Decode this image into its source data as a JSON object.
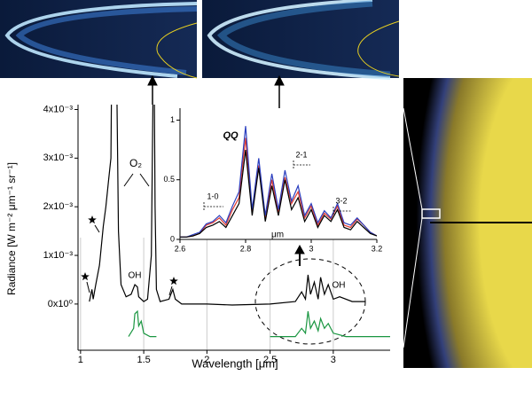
{
  "chart_data": [
    {
      "type": "line",
      "xlabel": "Wavelength [μm]",
      "ylabel": "Radiance [W m⁻² μm⁻¹ sr⁻¹]",
      "annotations": [
        "O₂",
        "OH",
        "OH"
      ],
      "xlim": [
        0.98,
        3.45
      ],
      "xticks": [
        1,
        1.5,
        2,
        2.5,
        3
      ],
      "ylim": [
        -0.00095,
        0.0041
      ],
      "yticks": [
        {
          "value": 0,
          "label": "0x10⁰"
        },
        {
          "value": 0.001,
          "label": "1x10⁻³"
        },
        {
          "value": 0.002,
          "label": "2x10⁻³"
        },
        {
          "value": 0.003,
          "label": "3x10⁻³"
        },
        {
          "value": 0.004,
          "label": "4x10⁻³"
        }
      ],
      "grid": true,
      "series": [
        {
          "color": "#000000",
          "x": [
            1.07,
            1.09,
            1.1,
            1.12,
            1.15,
            1.18,
            1.2,
            1.22,
            1.24,
            1.25,
            1.28,
            1.3,
            1.32,
            1.36,
            1.4,
            1.43,
            1.45,
            1.46,
            1.5,
            1.53,
            1.56,
            1.57,
            1.58,
            1.59,
            1.6,
            1.63,
            1.7,
            1.73,
            1.75,
            1.8,
            2.0,
            2.2,
            2.5,
            2.7,
            2.75,
            2.78,
            2.8,
            2.82,
            2.85,
            2.88,
            2.9,
            2.93,
            2.96,
            3.0,
            3.05,
            3.15,
            3.25
          ],
          "values": [
            5e-05,
            0.0003,
            0.0001,
            0.0004,
            0.0008,
            0.0016,
            0.002,
            0.0025,
            0.003,
            0.006,
            0.006,
            0.0015,
            0.0004,
            0.00015,
            0.0002,
            0.0004,
            0.00035,
            0.00015,
            5e-05,
            0.0001,
            0.001,
            0.0035,
            0.006,
            0.002,
            0.0003,
            5e-05,
            0.0001,
            0.0003,
            0.0001,
            0,
            0,
            -2e-05,
            0,
            5e-05,
            0.00025,
            0.0001,
            0.0006,
            0.0002,
            0.00045,
            0.0001,
            0.00055,
            0.0002,
            0.0004,
            0.0001,
            0.00015,
            5e-05,
            5e-05
          ]
        },
        {
          "color": "#1a9641",
          "x": [
            1.38,
            1.42,
            1.43,
            1.45,
            1.46,
            1.48,
            1.5,
            1.55,
            1.6,
            2.0,
            2.5,
            2.7,
            2.75,
            2.78,
            2.8,
            2.82,
            2.85,
            2.88,
            2.9,
            2.93,
            2.96,
            3.0,
            3.1,
            3.45
          ],
          "values": [
            -0.00067,
            -0.0005,
            -0.0002,
            -0.00015,
            -0.00045,
            -0.00035,
            -0.0006,
            -0.00067,
            -0.00067,
            null,
            -0.00067,
            -0.00067,
            -0.0005,
            -0.0006,
            -0.00015,
            -0.0005,
            -0.00035,
            -0.00055,
            -0.0003,
            -0.0005,
            -0.0004,
            -0.0006,
            -0.00067,
            -0.00067
          ]
        }
      ]
    },
    {
      "type": "line",
      "xlabel": "μm",
      "annotations": [
        "QQ",
        "1-0",
        "2-1",
        "3-2"
      ],
      "xlim": [
        2.6,
        3.2
      ],
      "xticks": [
        2.6,
        2.8,
        3,
        3.2
      ],
      "ylim": [
        0,
        1.1
      ],
      "yticks": [
        0,
        0.5,
        1
      ],
      "x": [
        2.6,
        2.62,
        2.64,
        2.66,
        2.68,
        2.7,
        2.72,
        2.74,
        2.76,
        2.78,
        2.8,
        2.82,
        2.84,
        2.86,
        2.88,
        2.9,
        2.92,
        2.94,
        2.96,
        2.98,
        3.0,
        3.02,
        3.04,
        3.06,
        3.08,
        3.1,
        3.12,
        3.14,
        3.16,
        3.18,
        3.2
      ],
      "series": [
        {
          "color": "#e03a2f",
          "values": [
            0.02,
            0.02,
            0.03,
            0.05,
            0.12,
            0.14,
            0.18,
            0.12,
            0.25,
            0.35,
            0.85,
            0.22,
            0.62,
            0.18,
            0.5,
            0.22,
            0.52,
            0.3,
            0.4,
            0.18,
            0.28,
            0.12,
            0.22,
            0.17,
            0.28,
            0.12,
            0.1,
            0.17,
            0.12,
            0.06,
            0.03
          ]
        },
        {
          "color": "#2b3fbf",
          "values": [
            0.02,
            0.02,
            0.04,
            0.06,
            0.13,
            0.15,
            0.2,
            0.14,
            0.28,
            0.4,
            0.95,
            0.25,
            0.68,
            0.2,
            0.55,
            0.25,
            0.58,
            0.32,
            0.45,
            0.2,
            0.3,
            0.14,
            0.24,
            0.18,
            0.3,
            0.14,
            0.12,
            0.18,
            0.12,
            0.06,
            0.03
          ]
        },
        {
          "color": "#000000",
          "values": [
            0.02,
            0.02,
            0.03,
            0.05,
            0.1,
            0.12,
            0.15,
            0.1,
            0.2,
            0.3,
            0.75,
            0.2,
            0.6,
            0.15,
            0.45,
            0.2,
            0.5,
            0.25,
            0.35,
            0.15,
            0.25,
            0.1,
            0.2,
            0.15,
            0.25,
            0.1,
            0.08,
            0.15,
            0.1,
            0.05,
            0.03
          ]
        }
      ]
    }
  ]
}
